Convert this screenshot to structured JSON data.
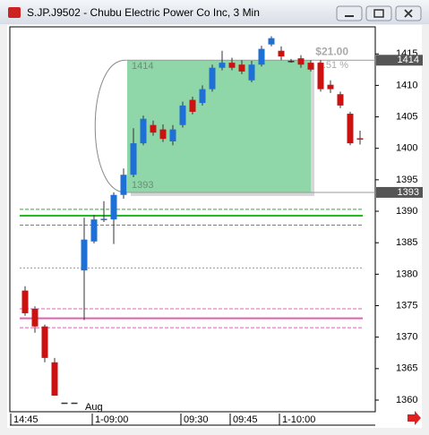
{
  "chart_data": {
    "type": "candlestick",
    "title": "S.JP.J9502 - Chubu Electric Power Co Inc, 3 Min",
    "categories": [
      "14:45",
      null,
      null,
      null,
      null,
      null,
      null,
      "1-09:00",
      null,
      null,
      null,
      null,
      null,
      null,
      null,
      null,
      "09:30",
      null,
      null,
      null,
      null,
      "09:45",
      null,
      null,
      null,
      null,
      "1-10:00",
      null,
      null,
      null,
      null,
      null,
      null,
      null,
      null
    ],
    "open": [
      1377.4,
      1374.5,
      1371.7,
      1366.0,
      1359.6,
      1359.6,
      1380.6,
      1385.2,
      1388.6,
      1388.7,
      1392.6,
      1395.8,
      1400.8,
      1403.7,
      1403.0,
      1401.1,
      1403.7,
      1407.7,
      1407.2,
      1409.4,
      1412.8,
      1413.6,
      1413.3,
      1410.8,
      1413.3,
      1416.5,
      1415.5,
      1413.9,
      1414.3,
      1413.6,
      1413.6,
      1410.1,
      1408.6,
      1405.5,
      1401.6
    ],
    "high": [
      1378.1,
      1374.9,
      1372.0,
      1366.7,
      1359.6,
      1359.6,
      1389.0,
      1389.4,
      1391.6,
      1393.0,
      1396.8,
      1403.2,
      1405.2,
      1404.4,
      1403.8,
      1403.7,
      1407.4,
      1408.2,
      1410.0,
      1413.3,
      1415.5,
      1414.4,
      1414.0,
      1413.9,
      1416.3,
      1417.8,
      1416.2,
      1414.2,
      1414.8,
      1414.0,
      1414.0,
      1410.8,
      1409.0,
      1405.8,
      1402.8
    ],
    "low": [
      1373.4,
      1370.7,
      1366.0,
      1360.7,
      1359.6,
      1359.6,
      1372.7,
      1384.9,
      1388.3,
      1384.8,
      1392.0,
      1395.4,
      1400.5,
      1402.0,
      1401.0,
      1400.5,
      1403.3,
      1405.4,
      1406.8,
      1409.0,
      1412.4,
      1412.4,
      1411.8,
      1410.5,
      1413.0,
      1416.2,
      1414.0,
      1413.6,
      1412.8,
      1412.2,
      1409.0,
      1408.8,
      1406.4,
      1400.5,
      1400.6
    ],
    "close": [
      1373.8,
      1371.7,
      1366.7,
      1360.7,
      1359.6,
      1359.6,
      1385.5,
      1388.7,
      1388.8,
      1392.6,
      1395.8,
      1400.8,
      1404.7,
      1402.5,
      1401.5,
      1403.0,
      1406.8,
      1405.8,
      1409.4,
      1412.8,
      1413.6,
      1412.8,
      1412.2,
      1413.3,
      1415.8,
      1417.5,
      1414.6,
      1413.9,
      1413.3,
      1412.5,
      1409.4,
      1409.4,
      1406.8,
      1400.8,
      1401.5
    ],
    "up_color": "#1e6fd6",
    "down_color": "#cc1111",
    "ylim": [
      1358.15,
      1419.3
    ],
    "yticks": [
      1360,
      1365,
      1370,
      1375,
      1380,
      1385,
      1390,
      1395,
      1400,
      1405,
      1410,
      1415
    ],
    "levels": [
      {
        "value": 1390.3,
        "color": "#22bb22",
        "style": "dashed"
      },
      {
        "value": 1389.3,
        "color": "#22bb22",
        "style": "solid"
      },
      {
        "value": 1387.8,
        "color": "#22bb22",
        "style": "dashed"
      },
      {
        "value": 1381,
        "color": "#999999",
        "style": "dotted"
      },
      {
        "value": 1374.5,
        "color": "#e060b0",
        "style": "dashed"
      },
      {
        "value": 1373,
        "color": "#e060b0",
        "style": "solid"
      },
      {
        "value": 1371.5,
        "color": "#e060b0",
        "style": "dashed"
      }
    ],
    "measure": {
      "high": 1414,
      "low": 1393,
      "change": 21,
      "change_label": "$21.00",
      "percent": 1.51,
      "percent_label": "1.51 %",
      "color": "#8fd6a8"
    },
    "price_tags": [
      1414,
      1393
    ],
    "annotation": "Aug"
  }
}
